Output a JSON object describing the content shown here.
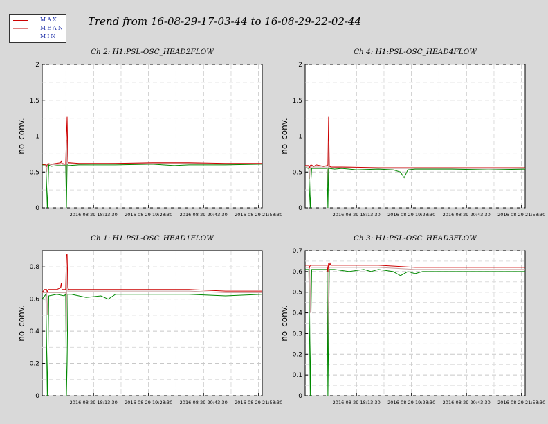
{
  "header": {
    "title": "Trend from 16-08-29-17-03-44 to 16-08-29-22-02-44"
  },
  "legend": {
    "items": [
      {
        "label": "MAX",
        "color": "#cc0000"
      },
      {
        "label": "MEAN",
        "color": "#e08080"
      },
      {
        "label": "MIN",
        "color": "#008800"
      }
    ]
  },
  "colors": {
    "max": "#cc0000",
    "mean": "#c8a0a0",
    "min": "#008800"
  },
  "chart_data": [
    {
      "type": "line",
      "title": "Ch 2: H1:PSL-OSC_HEAD2FLOW",
      "ylabel": "no_conv.",
      "ylim": [
        0,
        2
      ],
      "xlim": [
        0,
        300
      ],
      "yticks": [
        0,
        0.5,
        1,
        1.5,
        2
      ],
      "ytick_labels": [
        "0",
        "0.5",
        "1",
        "1.5",
        "2"
      ],
      "xticks": [
        70,
        145,
        220,
        295
      ],
      "xtick_labels": [
        "2016-08-29 18:13:30",
        "2016-08-29 19:28:30",
        "2016-08-29 20:43:30",
        "2016-08-29 21:58:30"
      ],
      "grid": true,
      "series": [
        {
          "name": "MAX",
          "x": [
            0,
            5,
            6,
            7,
            8,
            12,
            25,
            26,
            27,
            32,
            33,
            34,
            35,
            36,
            37,
            50,
            100,
            150,
            200,
            250,
            300
          ],
          "y": [
            0.61,
            0.6,
            0.58,
            0.61,
            0.62,
            0.61,
            0.63,
            0.65,
            0.62,
            0.61,
            0.98,
            1.27,
            0.64,
            0.63,
            0.63,
            0.62,
            0.62,
            0.63,
            0.63,
            0.62,
            0.62
          ]
        },
        {
          "name": "MEAN",
          "x": [
            0,
            5,
            6,
            7,
            8,
            25,
            26,
            27,
            32,
            33,
            34,
            35,
            36,
            50,
            100,
            150,
            200,
            250,
            300
          ],
          "y": [
            0.6,
            0.6,
            0.5,
            0.6,
            0.6,
            0.61,
            0.62,
            0.61,
            0.6,
            0.3,
            0.95,
            0.62,
            0.62,
            0.61,
            0.62,
            0.62,
            0.62,
            0.61,
            0.61
          ]
        },
        {
          "name": "MIN",
          "x": [
            0,
            5,
            6,
            7,
            8,
            9,
            12,
            20,
            32,
            33,
            34,
            35,
            36,
            50,
            100,
            150,
            180,
            200,
            250,
            300
          ],
          "y": [
            0.6,
            0.6,
            0.3,
            0.0,
            0.3,
            0.6,
            0.58,
            0.59,
            0.59,
            0.0,
            0.6,
            0.6,
            0.59,
            0.6,
            0.6,
            0.61,
            0.59,
            0.6,
            0.6,
            0.61
          ]
        }
      ]
    },
    {
      "type": "line",
      "title": "Ch 4: H1:PSL-OSC_HEAD4FLOW",
      "ylabel": "no_conv.",
      "ylim": [
        0,
        2
      ],
      "xlim": [
        0,
        300
      ],
      "yticks": [
        0,
        0.5,
        1,
        1.5,
        2
      ],
      "ytick_labels": [
        "0",
        "0.5",
        "1",
        "1.5",
        "2"
      ],
      "xticks": [
        70,
        145,
        220,
        295
      ],
      "xtick_labels": [
        "2016-08-29 18:13:30",
        "2016-08-29 19:28:30",
        "2016-08-29 20:43:30",
        "2016-08-29 21:58:30"
      ],
      "grid": true,
      "series": [
        {
          "name": "MAX",
          "x": [
            0,
            5,
            6,
            7,
            8,
            12,
            15,
            25,
            30,
            31,
            32,
            33,
            34,
            35,
            50,
            100,
            130,
            140,
            150,
            200,
            250,
            300
          ],
          "y": [
            0.59,
            0.59,
            0.56,
            0.59,
            0.6,
            0.58,
            0.6,
            0.58,
            0.59,
            0.6,
            1.27,
            0.58,
            0.58,
            0.57,
            0.57,
            0.56,
            0.56,
            0.56,
            0.56,
            0.56,
            0.56,
            0.56
          ]
        },
        {
          "name": "MEAN",
          "x": [
            0,
            5,
            6,
            7,
            30,
            31,
            32,
            33,
            50,
            100,
            150,
            200,
            250,
            300
          ],
          "y": [
            0.57,
            0.57,
            0.4,
            0.57,
            0.57,
            0.3,
            0.9,
            0.57,
            0.56,
            0.55,
            0.55,
            0.55,
            0.55,
            0.55
          ]
        },
        {
          "name": "MIN",
          "x": [
            0,
            5,
            6,
            7,
            8,
            9,
            30,
            31,
            32,
            33,
            40,
            50,
            70,
            100,
            120,
            130,
            135,
            140,
            150,
            200,
            250,
            300
          ],
          "y": [
            0.56,
            0.55,
            0.2,
            0.0,
            0.4,
            0.55,
            0.55,
            0.0,
            0.55,
            0.55,
            0.54,
            0.55,
            0.53,
            0.54,
            0.53,
            0.5,
            0.42,
            0.53,
            0.54,
            0.54,
            0.53,
            0.54
          ]
        }
      ]
    },
    {
      "type": "line",
      "title": "Ch 1: H1:PSL-OSC_HEAD1FLOW",
      "ylabel": "no_conv.",
      "ylim": [
        0,
        0.9
      ],
      "xlim": [
        0,
        300
      ],
      "yticks": [
        0,
        0.2,
        0.4,
        0.6,
        0.8
      ],
      "ytick_labels": [
        "0",
        "0.2",
        "0.4",
        "0.6",
        "0.8"
      ],
      "xticks": [
        70,
        145,
        220,
        295
      ],
      "xtick_labels": [
        "2016-08-29 18:13:30",
        "2016-08-29 19:28:30",
        "2016-08-29 20:43:30",
        "2016-08-29 21:58:30"
      ],
      "grid": true,
      "series": [
        {
          "name": "MAX",
          "x": [
            0,
            3,
            6,
            7,
            8,
            20,
            25,
            26,
            27,
            32,
            33,
            34,
            35,
            36,
            50,
            100,
            150,
            200,
            250,
            300
          ],
          "y": [
            0.64,
            0.66,
            0.66,
            0.64,
            0.66,
            0.66,
            0.67,
            0.7,
            0.66,
            0.66,
            0.87,
            0.88,
            0.67,
            0.66,
            0.66,
            0.66,
            0.66,
            0.66,
            0.65,
            0.65
          ]
        },
        {
          "name": "MEAN",
          "x": [
            0,
            6,
            7,
            8,
            32,
            33,
            34,
            35,
            50,
            100,
            150,
            200,
            250,
            300
          ],
          "y": [
            0.64,
            0.64,
            0.5,
            0.64,
            0.64,
            0.4,
            0.8,
            0.65,
            0.65,
            0.65,
            0.65,
            0.65,
            0.64,
            0.64
          ]
        },
        {
          "name": "MIN",
          "x": [
            0,
            5,
            6,
            7,
            8,
            9,
            20,
            30,
            32,
            33,
            34,
            35,
            40,
            60,
            80,
            90,
            100,
            140,
            200,
            250,
            300
          ],
          "y": [
            0.6,
            0.63,
            0.3,
            0.0,
            0.3,
            0.62,
            0.63,
            0.62,
            0.63,
            0.0,
            0.2,
            0.63,
            0.63,
            0.61,
            0.62,
            0.6,
            0.63,
            0.63,
            0.63,
            0.62,
            0.63
          ]
        }
      ]
    },
    {
      "type": "line",
      "title": "Ch 3: H1:PSL-OSC_HEAD3FLOW",
      "ylabel": "no_conv.",
      "ylim": [
        0,
        0.7
      ],
      "xlim": [
        0,
        300
      ],
      "yticks": [
        0,
        0.1,
        0.2,
        0.3,
        0.4,
        0.5,
        0.6,
        0.7
      ],
      "ytick_labels": [
        "0",
        "0.1",
        "0.2",
        "0.3",
        "0.4",
        "0.5",
        "0.6",
        "0.7"
      ],
      "xticks": [
        70,
        145,
        220,
        295
      ],
      "xtick_labels": [
        "2016-08-29 18:13:30",
        "2016-08-29 19:28:30",
        "2016-08-29 20:43:30",
        "2016-08-29 21:58:30"
      ],
      "grid": true,
      "series": [
        {
          "name": "MAX",
          "x": [
            0,
            5,
            6,
            7,
            8,
            20,
            30,
            31,
            32,
            33,
            34,
            35,
            50,
            100,
            150,
            200,
            250,
            300
          ],
          "y": [
            0.63,
            0.63,
            0.62,
            0.63,
            0.63,
            0.63,
            0.63,
            0.6,
            0.64,
            0.63,
            0.64,
            0.63,
            0.63,
            0.63,
            0.62,
            0.62,
            0.62,
            0.62
          ]
        },
        {
          "name": "MEAN",
          "x": [
            0,
            6,
            7,
            8,
            30,
            31,
            32,
            33,
            50,
            100,
            150,
            200,
            250,
            300
          ],
          "y": [
            0.62,
            0.62,
            0.4,
            0.62,
            0.62,
            0.15,
            0.6,
            0.62,
            0.62,
            0.62,
            0.61,
            0.61,
            0.61,
            0.61
          ]
        },
        {
          "name": "MIN",
          "x": [
            0,
            5,
            6,
            7,
            8,
            9,
            30,
            31,
            32,
            33,
            40,
            60,
            80,
            90,
            100,
            120,
            130,
            140,
            150,
            160,
            200,
            250,
            300
          ],
          "y": [
            0.61,
            0.61,
            0.3,
            0.0,
            0.4,
            0.61,
            0.61,
            0.0,
            0.3,
            0.61,
            0.61,
            0.6,
            0.61,
            0.6,
            0.61,
            0.6,
            0.58,
            0.6,
            0.59,
            0.6,
            0.6,
            0.6,
            0.6
          ]
        }
      ]
    }
  ]
}
